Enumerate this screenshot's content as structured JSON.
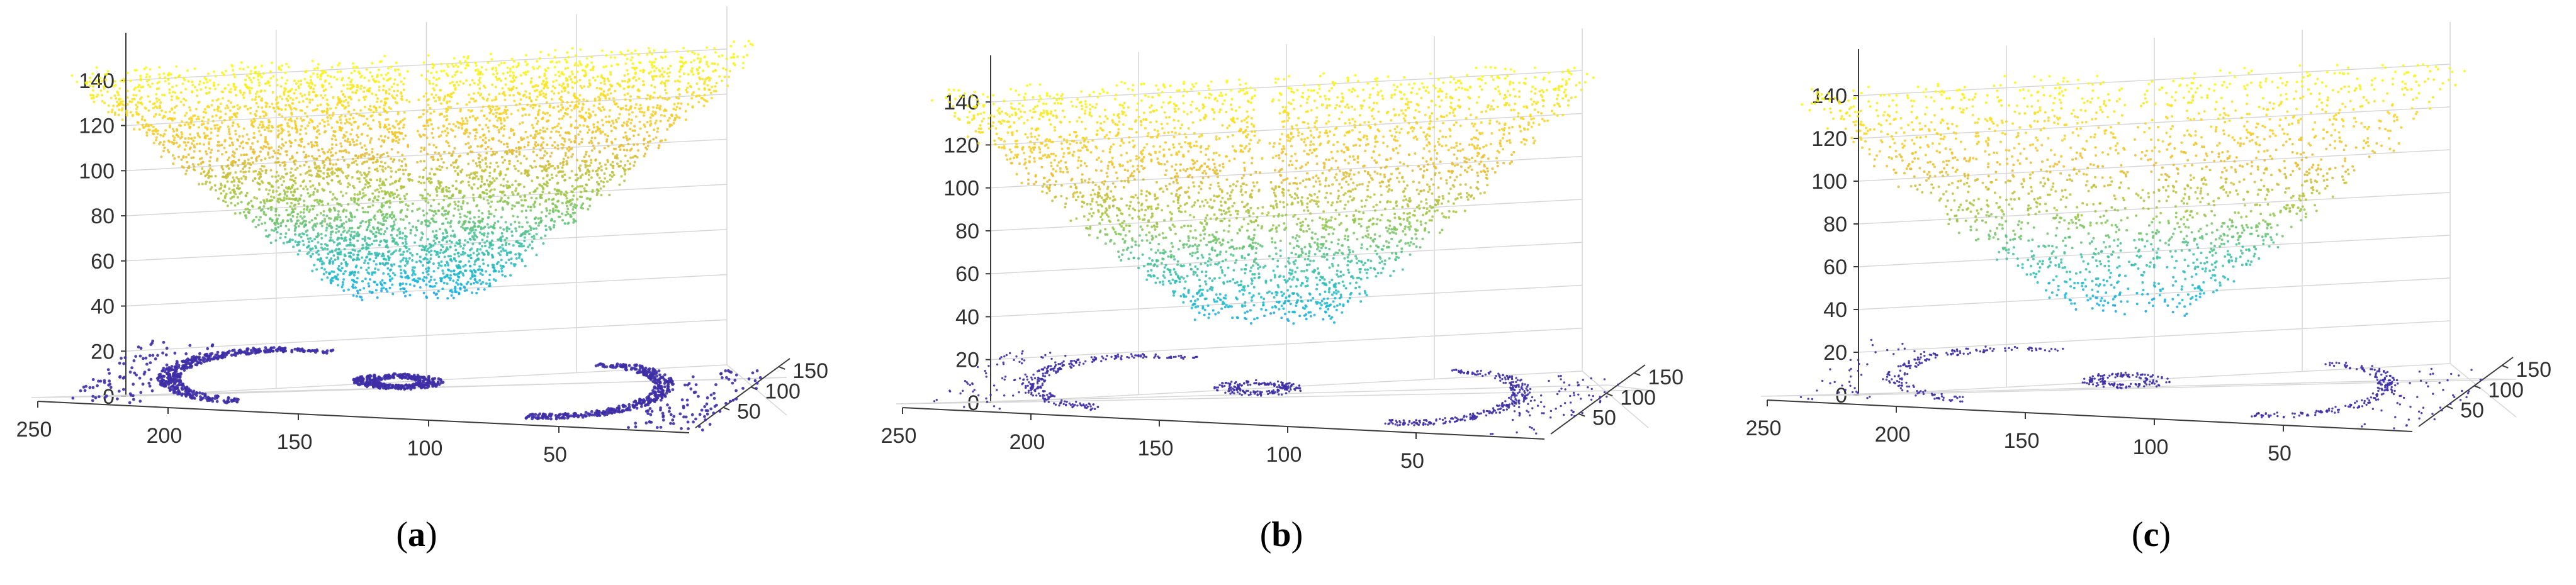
{
  "colors": {
    "colormap": [
      "#3e26a8",
      "#2e5ff0",
      "#12b6dc",
      "#3fc09a",
      "#9cc640",
      "#e8ba2e",
      "#f9d51e",
      "#f9fb0e"
    ],
    "base_projection": "#3d2fa6",
    "grid": "#d7d7d7",
    "axes": "#3a3a3a"
  },
  "chart_data": [
    {
      "type": "scatter",
      "panel": "(a)",
      "caption": {
        "open": "(",
        "letter": "a",
        "close": ")"
      },
      "z_ticks": [
        0,
        20,
        40,
        60,
        80,
        100,
        120,
        140
      ],
      "x_ticks": [
        250,
        200,
        150,
        100,
        50
      ],
      "y_ticks": [
        50,
        100,
        150
      ],
      "zlim": [
        0,
        150
      ],
      "xlim": [
        0,
        250
      ],
      "ylim": [
        0,
        170
      ],
      "grid": true,
      "surface": "cone opening upward, minimum near z=45 at center, rim near z=148",
      "min_z": 45,
      "max_z": 148,
      "point_density": "high",
      "projection_density": "high"
    },
    {
      "type": "scatter",
      "panel": "(b)",
      "caption": {
        "open": "(",
        "letter": "b",
        "close": ")"
      },
      "z_ticks": [
        0,
        20,
        40,
        60,
        80,
        100,
        120,
        140
      ],
      "x_ticks": [
        250,
        200,
        150,
        100,
        50
      ],
      "y_ticks": [
        50,
        100,
        150
      ],
      "zlim": [
        0,
        150
      ],
      "xlim": [
        0,
        250
      ],
      "ylim": [
        0,
        170
      ],
      "grid": true,
      "surface": "cone opening upward, minimum near z=40 at center, rim near z=150",
      "min_z": 38,
      "max_z": 150,
      "point_density": "medium",
      "projection_density": "medium"
    },
    {
      "type": "scatter",
      "panel": "(c)",
      "caption": {
        "open": "(",
        "letter": "c",
        "close": ")"
      },
      "z_ticks": [
        0,
        20,
        40,
        60,
        80,
        100,
        120,
        140
      ],
      "x_ticks": [
        250,
        200,
        150,
        100,
        50
      ],
      "y_ticks": [
        50,
        100,
        150
      ],
      "zlim": [
        0,
        150
      ],
      "xlim": [
        0,
        250
      ],
      "ylim": [
        0,
        170
      ],
      "grid": true,
      "surface": "cone opening upward, minimum near z=40 at center, rim near z=148",
      "min_z": 40,
      "max_z": 148,
      "point_density": "low",
      "projection_density": "low"
    }
  ]
}
